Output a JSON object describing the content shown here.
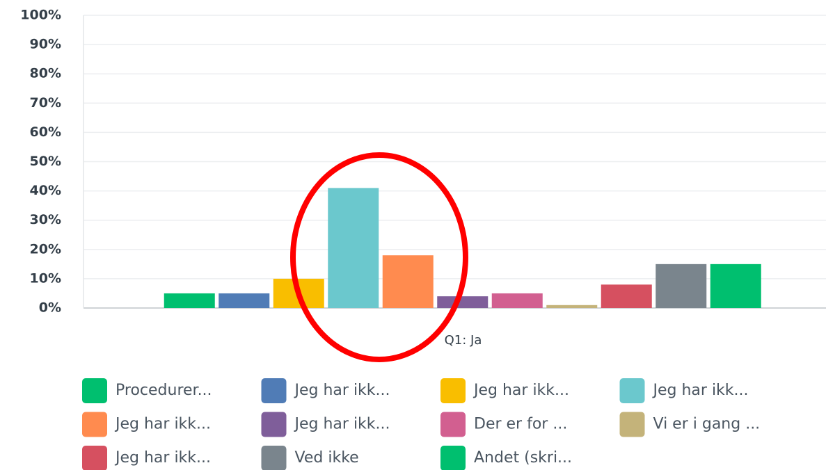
{
  "chart_data": {
    "type": "bar",
    "categories": [
      "Q1: Ja"
    ],
    "series": [
      {
        "name": "Procedurer...",
        "color": "#00bf6f",
        "values": [
          5
        ]
      },
      {
        "name": "Jeg har ikk...",
        "color": "#507cb6",
        "values": [
          5
        ]
      },
      {
        "name": "Jeg har ikk...",
        "color": "#f9be00",
        "values": [
          10
        ]
      },
      {
        "name": "Jeg har ikk...",
        "color": "#6bc8cd",
        "values": [
          41
        ]
      },
      {
        "name": "Jeg har ikk...",
        "color": "#ff8b4f",
        "values": [
          18
        ]
      },
      {
        "name": "Jeg har ikk...",
        "color": "#7f5e9a",
        "values": [
          4
        ]
      },
      {
        "name": "Der er for ...",
        "color": "#d25f90",
        "values": [
          5
        ]
      },
      {
        "name": "Vi er i gang ...",
        "color": "#c4b37a",
        "values": [
          1
        ]
      },
      {
        "name": "Jeg har ikk...",
        "color": "#d65060",
        "values": [
          8
        ]
      },
      {
        "name": "Ved ikke",
        "color": "#7a858d",
        "values": [
          15
        ]
      },
      {
        "name": "Andet (skri...",
        "color": "#00bf6f",
        "values": [
          15
        ]
      }
    ],
    "ylim": [
      0,
      100
    ],
    "yticks": [
      {
        "value": 0,
        "label": "0%"
      },
      {
        "value": 10,
        "label": "10%"
      },
      {
        "value": 20,
        "label": "20%"
      },
      {
        "value": 30,
        "label": "30%"
      },
      {
        "value": 40,
        "label": "40%"
      },
      {
        "value": 50,
        "label": "50%"
      },
      {
        "value": 60,
        "label": "60%"
      },
      {
        "value": 70,
        "label": "70%"
      },
      {
        "value": 80,
        "label": "80%"
      },
      {
        "value": 90,
        "label": "90%"
      },
      {
        "value": 100,
        "label": "100%"
      }
    ],
    "grid": true,
    "legend": "bottom"
  }
}
